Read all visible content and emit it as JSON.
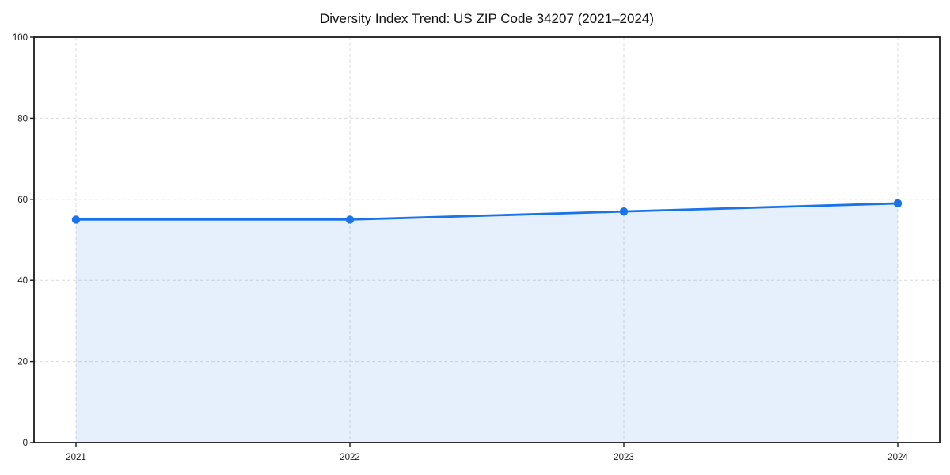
{
  "chart_data": {
    "type": "line",
    "title": "Diversity Index Trend: US ZIP Code 34207 (2021–2024)",
    "categories": [
      "2021",
      "2022",
      "2023",
      "2024"
    ],
    "series": [
      {
        "name": "Diversity Index",
        "values": [
          55,
          55,
          57,
          59
        ]
      }
    ],
    "xlabel": "",
    "ylabel": "",
    "ylim": [
      0,
      100
    ],
    "yticks": [
      0,
      20,
      40,
      60,
      80,
      100
    ],
    "grid": "dashed-both-axes",
    "legend": false,
    "marker": "circle",
    "area_fill": true,
    "colors": {
      "line": "#1a73e8",
      "fill": "rgba(26,115,232,0.11)",
      "grid": "#dcdcdc",
      "axis": "#1a1a1a",
      "text": "#1a1a1a",
      "background": "#ffffff"
    }
  }
}
